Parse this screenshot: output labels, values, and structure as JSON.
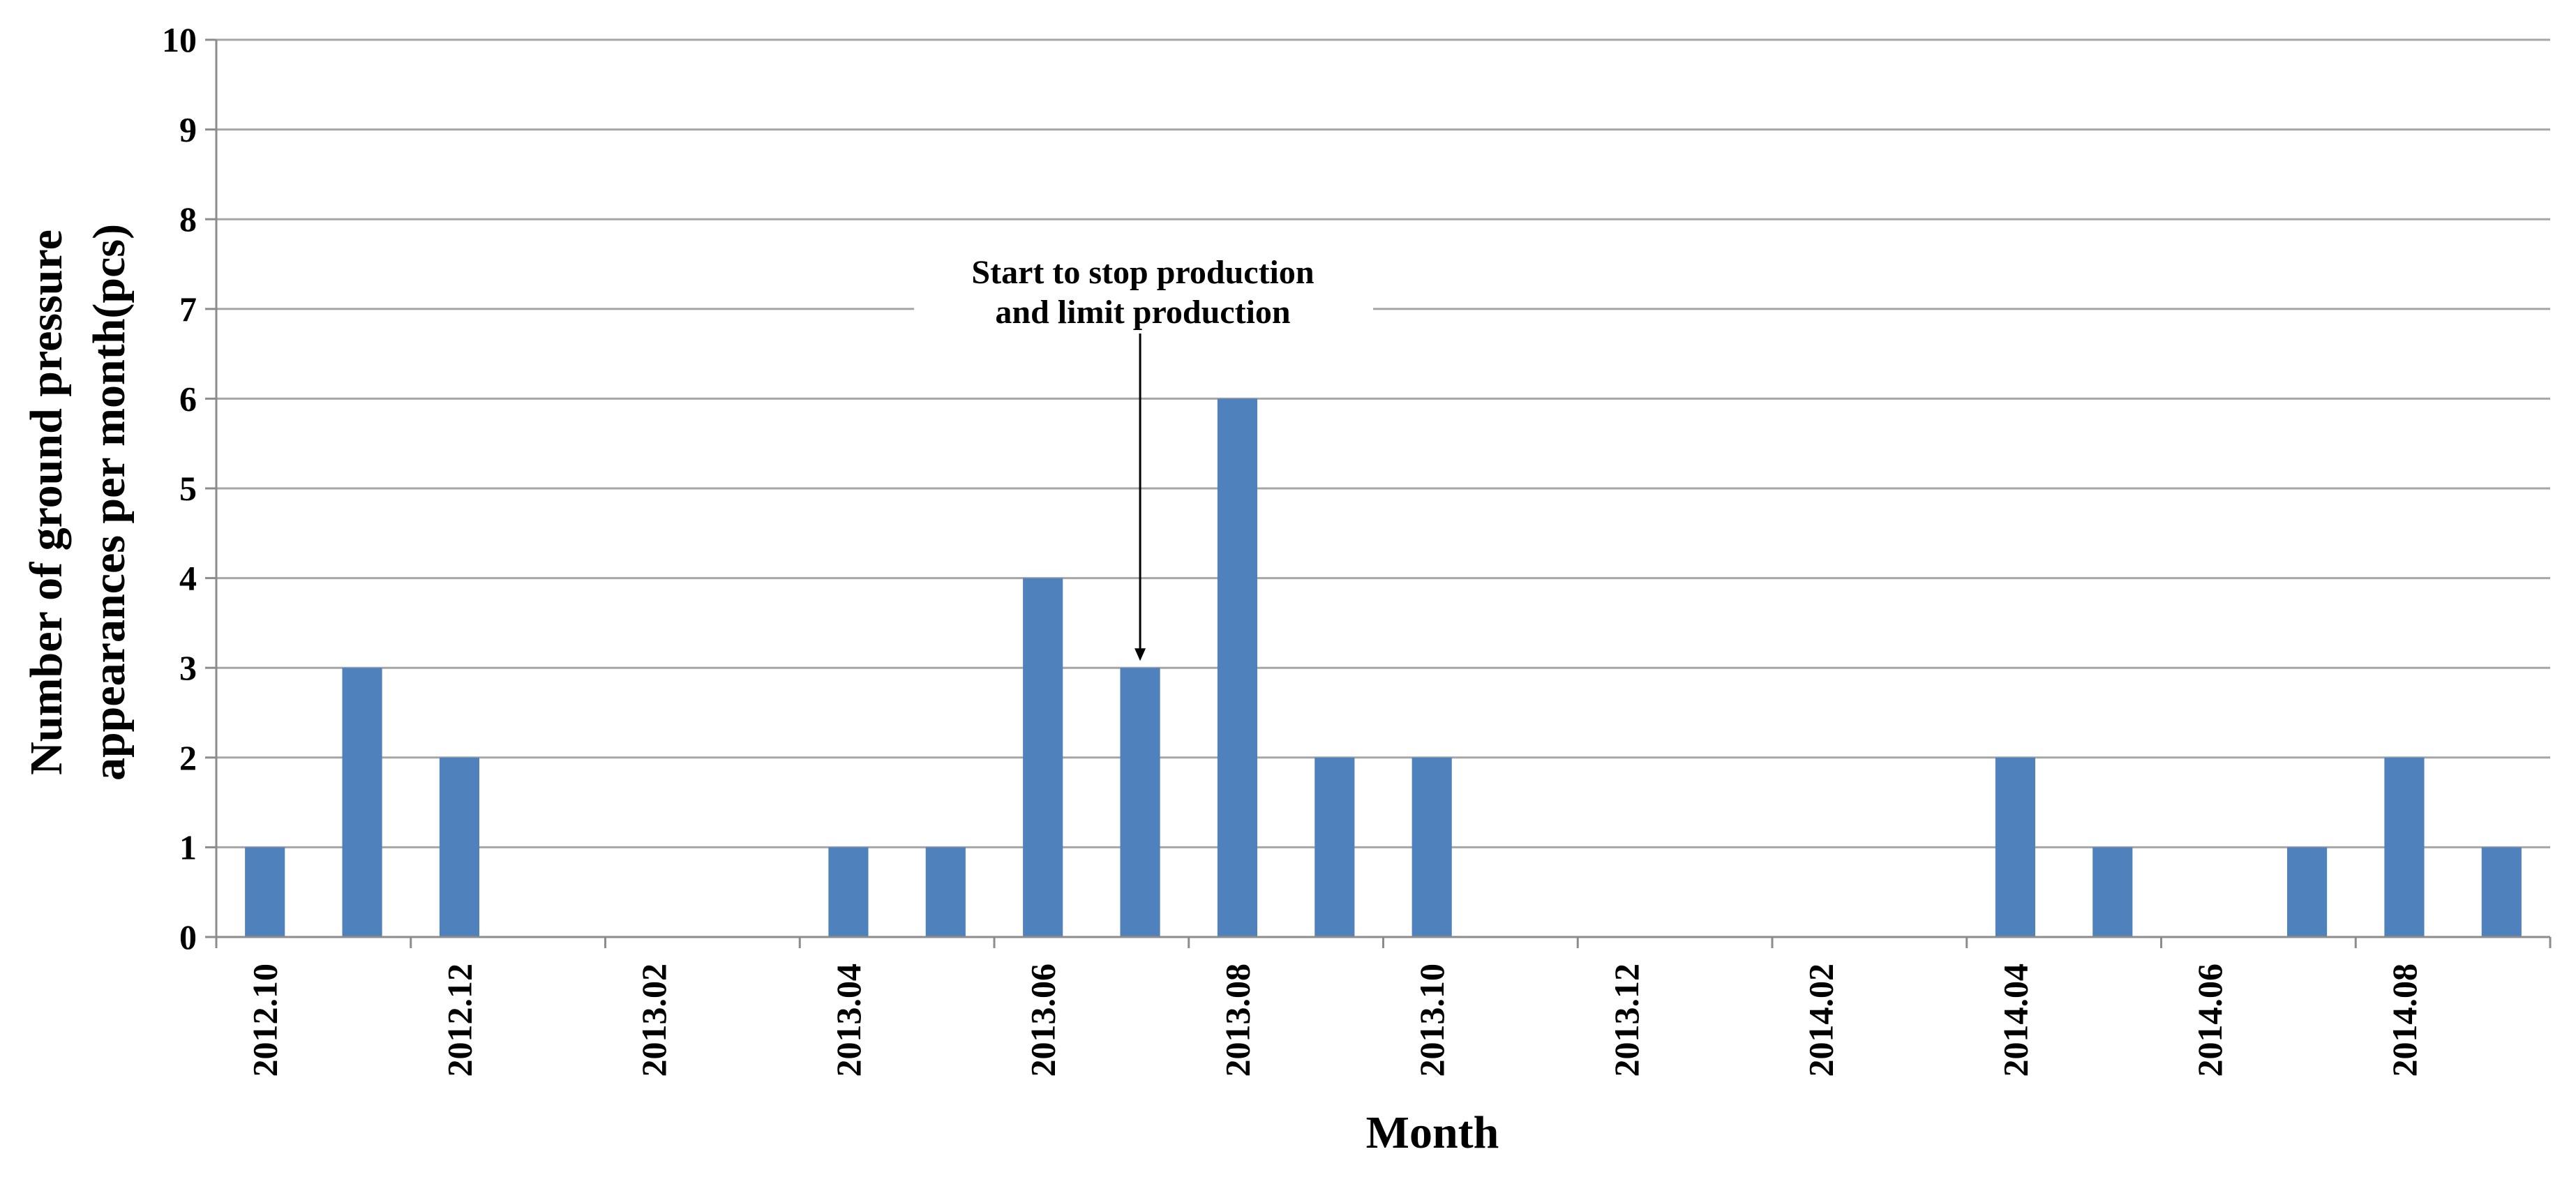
{
  "chart_data": {
    "type": "bar",
    "title": "",
    "xlabel": "Month",
    "ylabel_lines": [
      "Number of ground pressure",
      "appearances per month(pcs)"
    ],
    "ylim": [
      0,
      10
    ],
    "yticks": [
      0,
      1,
      2,
      3,
      4,
      5,
      6,
      7,
      8,
      9,
      10
    ],
    "grid": true,
    "legend": "none",
    "bar_color": "#4F81BD",
    "categories": [
      "2012.10",
      "2012.11",
      "2012.12",
      "2013.01",
      "2013.02",
      "2013.03",
      "2013.04",
      "2013.05",
      "2013.06",
      "2013.07",
      "2013.08",
      "2013.09",
      "2013.10",
      "2013.11",
      "2013.12",
      "2014.01",
      "2014.02",
      "2014.03",
      "2014.04",
      "2014.05",
      "2014.06",
      "2014.07",
      "2014.08",
      "2014.09"
    ],
    "xtick_labels": [
      "2012.10",
      "2012.12",
      "2013.02",
      "2013.04",
      "2013.06",
      "2013.08",
      "2013.10",
      "2013.12",
      "2014.02",
      "2014.04",
      "2014.06",
      "2014.08"
    ],
    "values": [
      1,
      3,
      2,
      0,
      0,
      0,
      1,
      1,
      4,
      3,
      6,
      2,
      2,
      0,
      0,
      0,
      0,
      0,
      2,
      1,
      0,
      1,
      2,
      1
    ],
    "annotations": [
      {
        "lines": [
          "Start to stop production",
          "and limit production"
        ],
        "category": "2013.07",
        "value": 3
      }
    ]
  }
}
